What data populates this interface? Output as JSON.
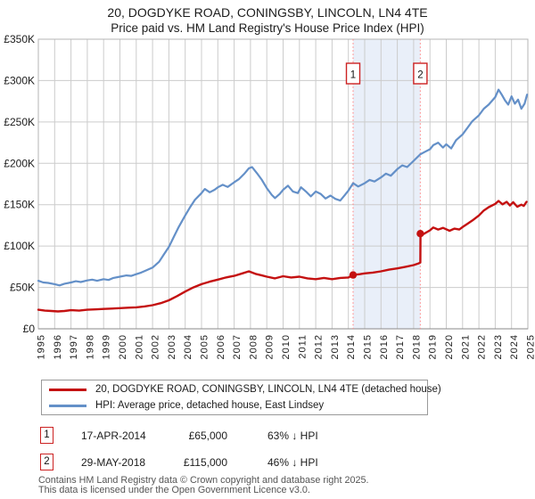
{
  "title": "20, DOGDYKE ROAD, CONINGSBY, LINCOLN, LN4 4TE",
  "subtitle": "Price paid vs. HM Land Registry's House Price Index (HPI)",
  "colors": {
    "price_line": "#c41111",
    "hpi_line": "#6490c8",
    "marker_dashed": "#ff9393",
    "marker_box_border": "#cc2222",
    "shaded_band": "#e9eff9",
    "grid": "#cccccc",
    "plot_border": "#b5b5b5",
    "axis_line": "#8a8a8a"
  },
  "chart_data": {
    "type": "line",
    "title": "20, DOGDYKE ROAD, CONINGSBY, LINCOLN, LN4 4TE",
    "subtitle": "Price paid vs. HM Land Registry's House Price Index (HPI)",
    "xlabel": "",
    "ylabel": "",
    "xlim": [
      1995,
      2025
    ],
    "ylim": [
      0,
      350000
    ],
    "grid": true,
    "legend_position": "bottom",
    "y_ticks": [
      [
        0,
        "£0"
      ],
      [
        50000,
        "£50K"
      ],
      [
        100000,
        "£100K"
      ],
      [
        150000,
        "£150K"
      ],
      [
        200000,
        "£200K"
      ],
      [
        250000,
        "£250K"
      ],
      [
        300000,
        "£300K"
      ],
      [
        350000,
        "£350K"
      ]
    ],
    "x_ticks": [
      "1995",
      "1996",
      "1997",
      "1998",
      "1999",
      "2000",
      "2001",
      "2002",
      "2003",
      "2004",
      "2005",
      "2006",
      "2007",
      "2008",
      "2009",
      "2010",
      "2011",
      "2012",
      "2013",
      "2014",
      "2015",
      "2016",
      "2017",
      "2018",
      "2019",
      "2020",
      "2021",
      "2022",
      "2023",
      "2024",
      "2025"
    ],
    "shaded_region": {
      "from_year": 2014.29,
      "to_year": 2018.41
    },
    "series": [
      {
        "name": "20, DOGDYKE ROAD, CONINGSBY, LINCOLN, LN4 4TE (detached house)",
        "color": "#c41111",
        "points": [
          [
            1995.0,
            23000
          ],
          [
            1995.4,
            22000
          ],
          [
            1995.8,
            21500
          ],
          [
            1996.2,
            21000
          ],
          [
            1996.6,
            21500
          ],
          [
            1997.0,
            22500
          ],
          [
            1997.5,
            22000
          ],
          [
            1998.0,
            23000
          ],
          [
            1998.5,
            23500
          ],
          [
            1999.0,
            24000
          ],
          [
            1999.5,
            24500
          ],
          [
            2000.0,
            25000
          ],
          [
            2000.5,
            25500
          ],
          [
            2001.0,
            26000
          ],
          [
            2001.5,
            27000
          ],
          [
            2002.0,
            28500
          ],
          [
            2002.5,
            31000
          ],
          [
            2003.0,
            34500
          ],
          [
            2003.5,
            39500
          ],
          [
            2004.0,
            45000
          ],
          [
            2004.5,
            50000
          ],
          [
            2005.0,
            54000
          ],
          [
            2005.5,
            57000
          ],
          [
            2006.0,
            59500
          ],
          [
            2006.5,
            62000
          ],
          [
            2007.0,
            64000
          ],
          [
            2007.5,
            67000
          ],
          [
            2007.9,
            69500
          ],
          [
            2008.3,
            66500
          ],
          [
            2008.7,
            64500
          ],
          [
            2009.0,
            63000
          ],
          [
            2009.5,
            61000
          ],
          [
            2010.0,
            63500
          ],
          [
            2010.5,
            62000
          ],
          [
            2011.0,
            63000
          ],
          [
            2011.5,
            61000
          ],
          [
            2012.0,
            60000
          ],
          [
            2012.5,
            61500
          ],
          [
            2013.0,
            60000
          ],
          [
            2013.5,
            61500
          ],
          [
            2014.0,
            62000
          ],
          [
            2014.29,
            65000
          ],
          [
            2014.7,
            66000
          ],
          [
            2015.0,
            67000
          ],
          [
            2015.5,
            68000
          ],
          [
            2016.0,
            69500
          ],
          [
            2016.5,
            71500
          ],
          [
            2017.0,
            73000
          ],
          [
            2017.5,
            75000
          ],
          [
            2018.0,
            77000
          ],
          [
            2018.3,
            79000
          ],
          [
            2018.41,
            80000
          ],
          [
            2018.42,
            115000
          ],
          [
            2018.6,
            114500
          ],
          [
            2019.0,
            119000
          ],
          [
            2019.2,
            122500
          ],
          [
            2019.5,
            120000
          ],
          [
            2019.8,
            122000
          ],
          [
            2020.2,
            118500
          ],
          [
            2020.5,
            121000
          ],
          [
            2020.8,
            120000
          ],
          [
            2021.0,
            123000
          ],
          [
            2021.3,
            127000
          ],
          [
            2021.6,
            131000
          ],
          [
            2022.0,
            137000
          ],
          [
            2022.3,
            143000
          ],
          [
            2022.6,
            147000
          ],
          [
            2023.0,
            151000
          ],
          [
            2023.2,
            154500
          ],
          [
            2023.45,
            150500
          ],
          [
            2023.7,
            153500
          ],
          [
            2023.9,
            149000
          ],
          [
            2024.1,
            153000
          ],
          [
            2024.35,
            147500
          ],
          [
            2024.6,
            150000
          ],
          [
            2024.75,
            148500
          ],
          [
            2024.92,
            153500
          ]
        ]
      },
      {
        "name": "HPI: Average price, detached house, East Lindsey",
        "color": "#6490c8",
        "points": [
          [
            1995.0,
            58000
          ],
          [
            1995.3,
            56000
          ],
          [
            1995.6,
            55500
          ],
          [
            1996.0,
            54000
          ],
          [
            1996.3,
            52500
          ],
          [
            1996.6,
            54500
          ],
          [
            1997.0,
            56000
          ],
          [
            1997.3,
            57500
          ],
          [
            1997.6,
            56500
          ],
          [
            1998.0,
            58500
          ],
          [
            1998.3,
            59500
          ],
          [
            1998.6,
            58000
          ],
          [
            1999.0,
            60000
          ],
          [
            1999.3,
            59000
          ],
          [
            1999.6,
            61500
          ],
          [
            2000.0,
            63000
          ],
          [
            2000.4,
            64500
          ],
          [
            2000.7,
            64000
          ],
          [
            2001.0,
            66000
          ],
          [
            2001.3,
            68000
          ],
          [
            2001.6,
            70500
          ],
          [
            2002.0,
            74000
          ],
          [
            2002.4,
            81000
          ],
          [
            2002.7,
            90000
          ],
          [
            2003.0,
            99000
          ],
          [
            2003.3,
            111000
          ],
          [
            2003.6,
            123000
          ],
          [
            2004.0,
            137000
          ],
          [
            2004.3,
            147000
          ],
          [
            2004.6,
            156000
          ],
          [
            2005.0,
            164000
          ],
          [
            2005.2,
            169000
          ],
          [
            2005.5,
            165000
          ],
          [
            2005.8,
            168000
          ],
          [
            2006.0,
            171000
          ],
          [
            2006.3,
            174000
          ],
          [
            2006.6,
            171500
          ],
          [
            2007.0,
            177000
          ],
          [
            2007.3,
            181000
          ],
          [
            2007.6,
            187000
          ],
          [
            2007.9,
            194000
          ],
          [
            2008.1,
            195500
          ],
          [
            2008.4,
            188000
          ],
          [
            2008.7,
            180000
          ],
          [
            2009.0,
            170000
          ],
          [
            2009.3,
            162000
          ],
          [
            2009.5,
            158000
          ],
          [
            2009.8,
            163000
          ],
          [
            2010.0,
            168000
          ],
          [
            2010.3,
            173000
          ],
          [
            2010.6,
            166000
          ],
          [
            2010.9,
            164000
          ],
          [
            2011.1,
            171000
          ],
          [
            2011.4,
            166000
          ],
          [
            2011.7,
            160000
          ],
          [
            2012.0,
            166000
          ],
          [
            2012.3,
            163000
          ],
          [
            2012.6,
            157500
          ],
          [
            2012.9,
            161000
          ],
          [
            2013.2,
            157000
          ],
          [
            2013.5,
            155000
          ],
          [
            2013.8,
            162000
          ],
          [
            2014.0,
            167000
          ],
          [
            2014.29,
            176000
          ],
          [
            2014.6,
            172000
          ],
          [
            2015.0,
            176000
          ],
          [
            2015.3,
            180000
          ],
          [
            2015.6,
            178000
          ],
          [
            2016.0,
            183000
          ],
          [
            2016.3,
            187500
          ],
          [
            2016.6,
            185000
          ],
          [
            2017.0,
            193000
          ],
          [
            2017.3,
            197500
          ],
          [
            2017.6,
            195500
          ],
          [
            2018.0,
            203000
          ],
          [
            2018.41,
            211000
          ],
          [
            2018.7,
            214000
          ],
          [
            2019.0,
            217000
          ],
          [
            2019.2,
            222000
          ],
          [
            2019.5,
            225000
          ],
          [
            2019.8,
            219000
          ],
          [
            2020.0,
            223000
          ],
          [
            2020.3,
            218000
          ],
          [
            2020.6,
            228000
          ],
          [
            2021.0,
            235000
          ],
          [
            2021.3,
            243000
          ],
          [
            2021.6,
            251000
          ],
          [
            2022.0,
            258000
          ],
          [
            2022.3,
            266000
          ],
          [
            2022.6,
            271000
          ],
          [
            2023.0,
            280000
          ],
          [
            2023.2,
            289000
          ],
          [
            2023.4,
            283000
          ],
          [
            2023.6,
            276000
          ],
          [
            2023.8,
            271000
          ],
          [
            2024.0,
            281000
          ],
          [
            2024.2,
            272000
          ],
          [
            2024.4,
            277000
          ],
          [
            2024.6,
            266000
          ],
          [
            2024.8,
            272000
          ],
          [
            2024.95,
            283000
          ]
        ]
      }
    ],
    "markers": [
      {
        "label": "1",
        "year": 2014.29,
        "value": 65000
      },
      {
        "label": "2",
        "year": 2018.41,
        "value": 115000
      }
    ]
  },
  "annotations": [
    {
      "num": "1",
      "date": "17-APR-2014",
      "price": "£65,000",
      "vs_hpi": "63% ↓ HPI"
    },
    {
      "num": "2",
      "date": "29-MAY-2018",
      "price": "£115,000",
      "vs_hpi": "46% ↓ HPI"
    }
  ],
  "footer": {
    "line1": "Contains HM Land Registry data © Crown copyright and database right 2025.",
    "line2": "This data is licensed under the Open Government Licence v3.0."
  }
}
